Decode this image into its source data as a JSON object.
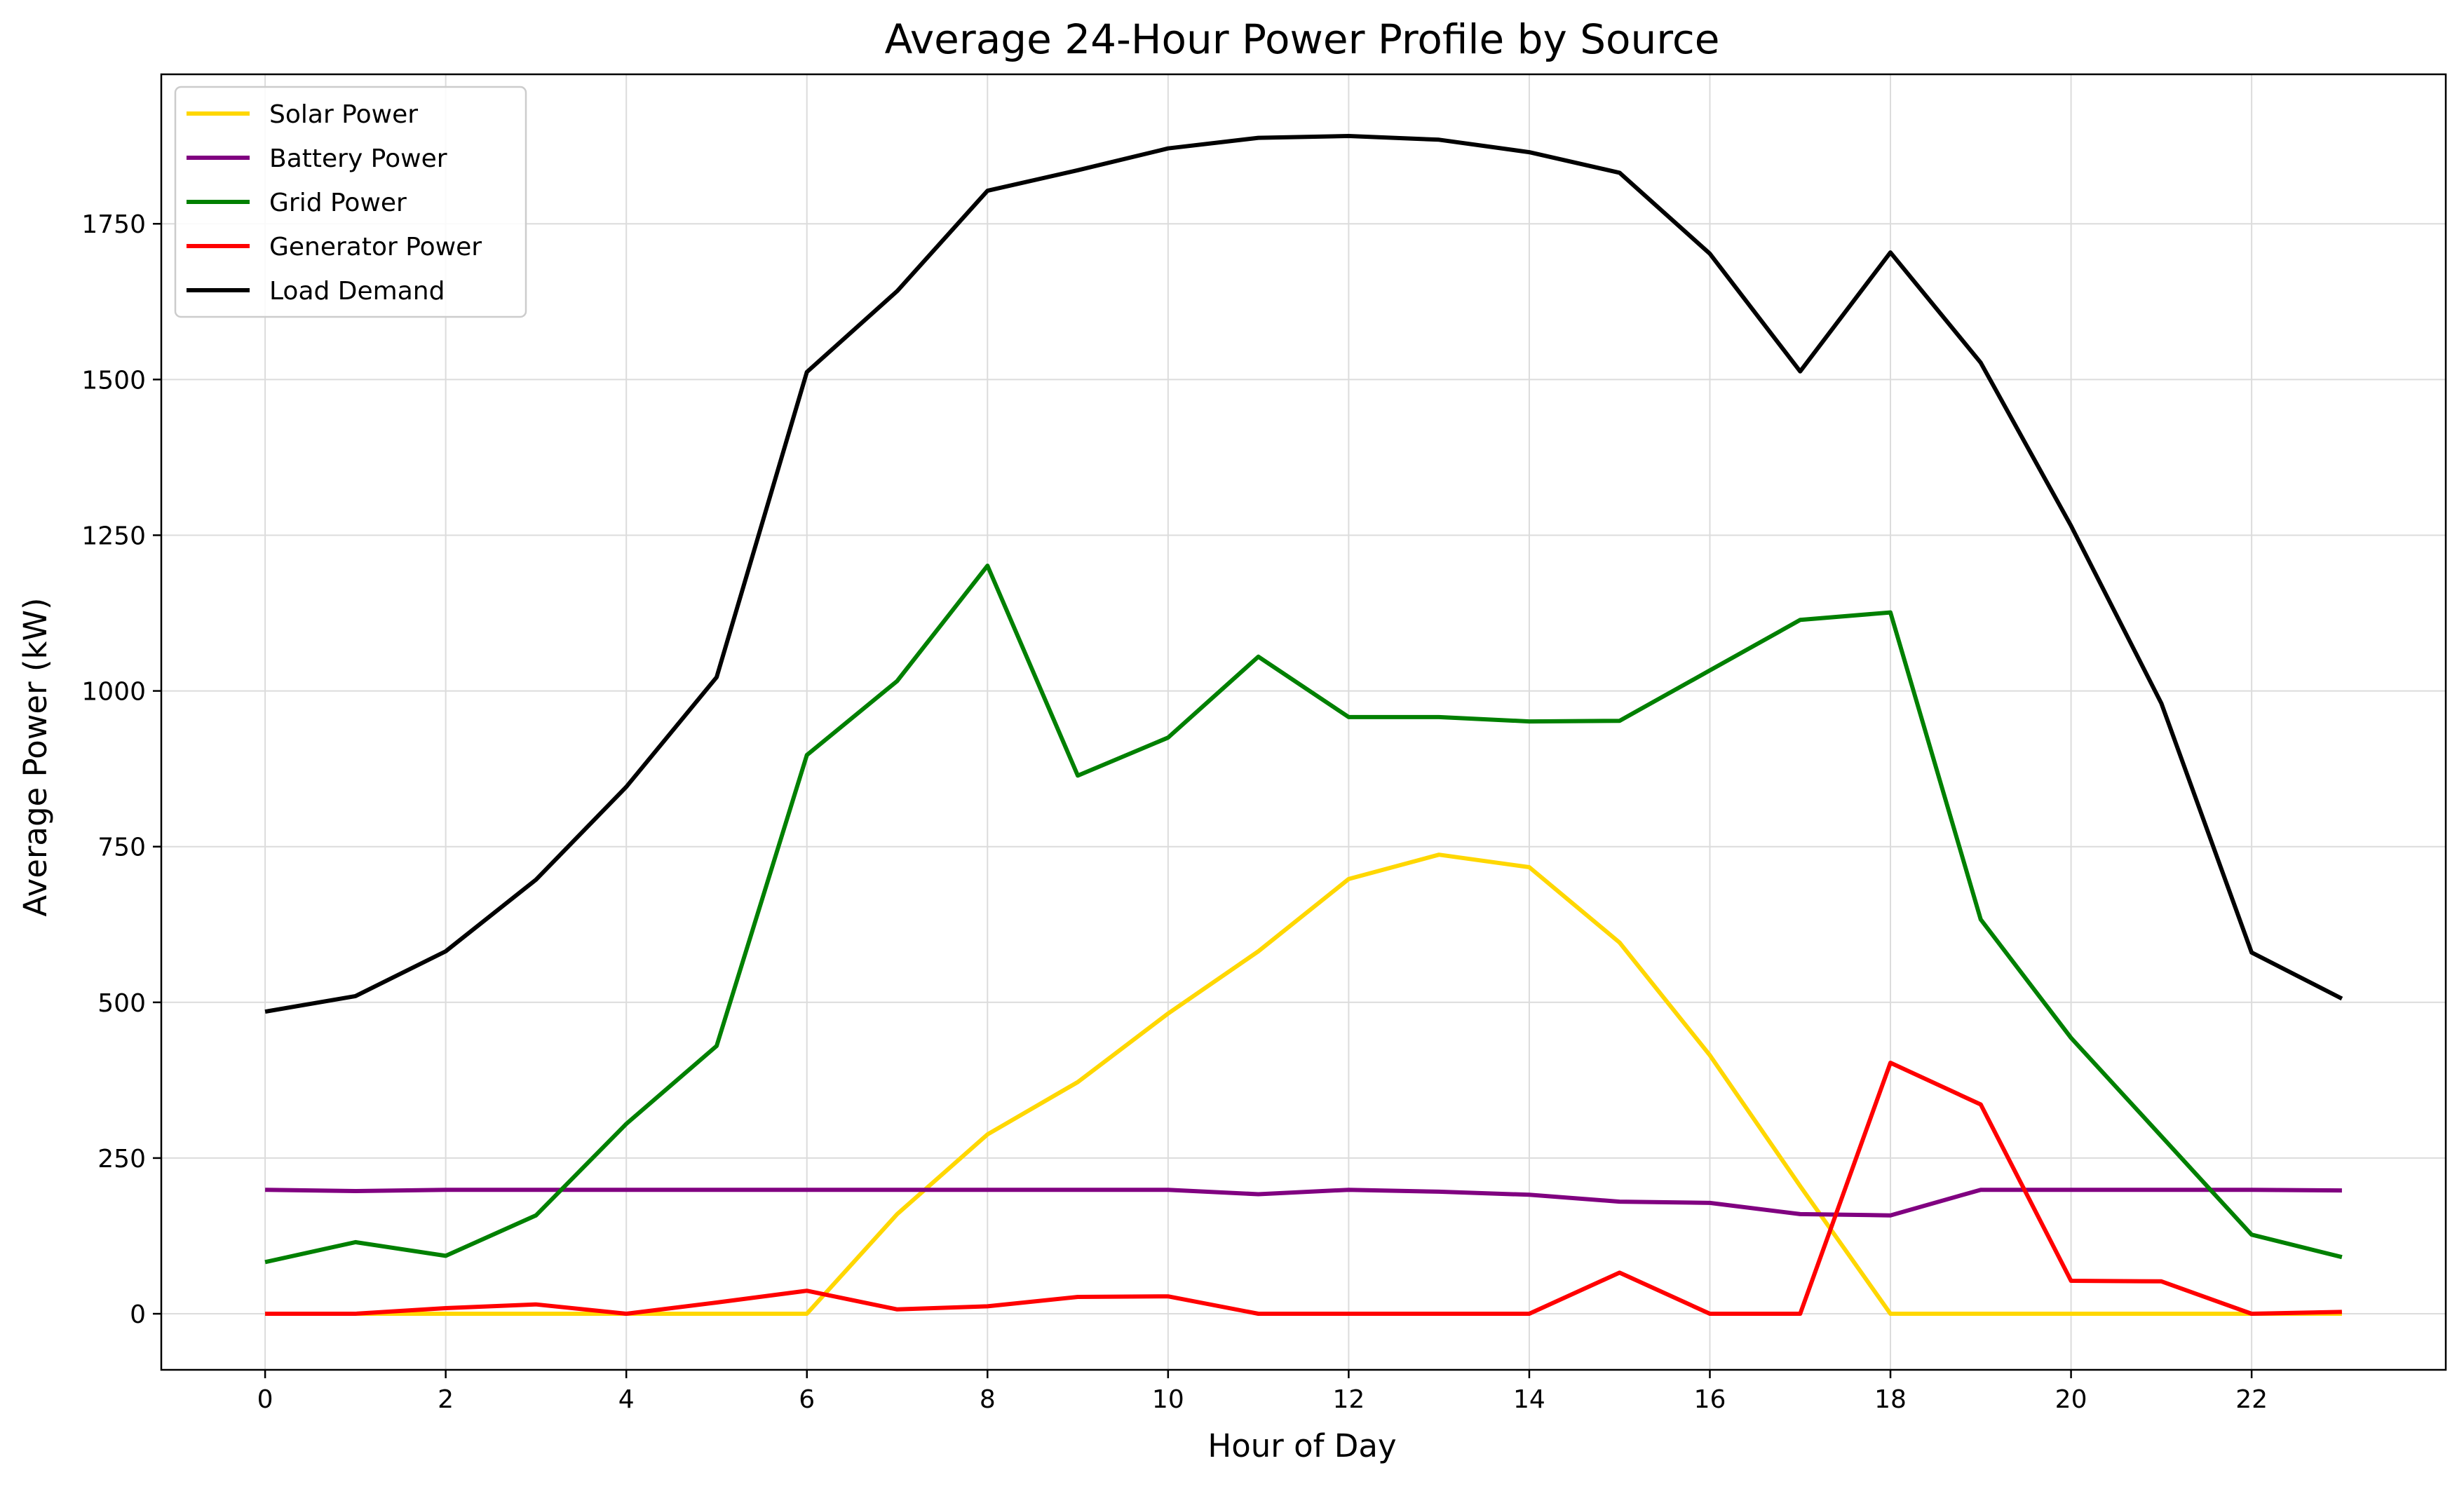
{
  "chart_data": {
    "type": "line",
    "title": "Average 24-Hour Power Profile by Source",
    "xlabel": "Hour of Day",
    "ylabel": "Average Power (kW)",
    "xlim": [
      -1.15,
      24.15
    ],
    "ylim": [
      -90,
      1990
    ],
    "x_ticks": [
      0,
      2,
      4,
      6,
      8,
      10,
      12,
      14,
      16,
      18,
      20,
      22
    ],
    "y_ticks": [
      0,
      250,
      500,
      750,
      1000,
      1250,
      1500,
      1750
    ],
    "grid": true,
    "legend_position": "top-left",
    "x": [
      0,
      1,
      2,
      3,
      4,
      5,
      6,
      7,
      8,
      9,
      10,
      11,
      12,
      13,
      14,
      15,
      16,
      17,
      18,
      19,
      20,
      21,
      22,
      23
    ],
    "series": [
      {
        "name": "Solar Power",
        "color": "#FFD700",
        "values": [
          0,
          0,
          0,
          0,
          0,
          0,
          0,
          160,
          288,
          372,
          482,
          582,
          698,
          737,
          717,
          596,
          415,
          205,
          0,
          0,
          0,
          0,
          0,
          0
        ]
      },
      {
        "name": "Battery Power",
        "color": "#800080",
        "values": [
          199,
          197,
          199,
          199,
          199,
          199,
          199,
          199,
          199,
          199,
          199,
          192,
          199,
          196,
          191,
          180,
          178,
          160,
          158,
          199,
          199,
          199,
          199,
          198
        ]
      },
      {
        "name": "Grid Power",
        "color": "#008000",
        "values": [
          83,
          115,
          93,
          158,
          305,
          430,
          897,
          1016,
          1201,
          864,
          925,
          1055,
          958,
          958,
          951,
          952,
          1033,
          1114,
          1126,
          633,
          443,
          285,
          127,
          91
        ]
      },
      {
        "name": "Generator Power",
        "color": "#FF0000",
        "values": [
          0,
          0,
          9,
          15,
          0,
          18,
          37,
          7,
          12,
          27,
          28,
          0,
          0,
          0,
          0,
          66,
          0,
          0,
          403,
          336,
          53,
          52,
          0,
          3
        ]
      },
      {
        "name": "Load Demand",
        "color": "#000000",
        "values": [
          485,
          510,
          582,
          697,
          846,
          1022,
          1512,
          1642,
          1803,
          1836,
          1871,
          1888,
          1891,
          1885,
          1865,
          1832,
          1702,
          1513,
          1704,
          1527,
          1265,
          980,
          580,
          506
        ]
      }
    ]
  }
}
